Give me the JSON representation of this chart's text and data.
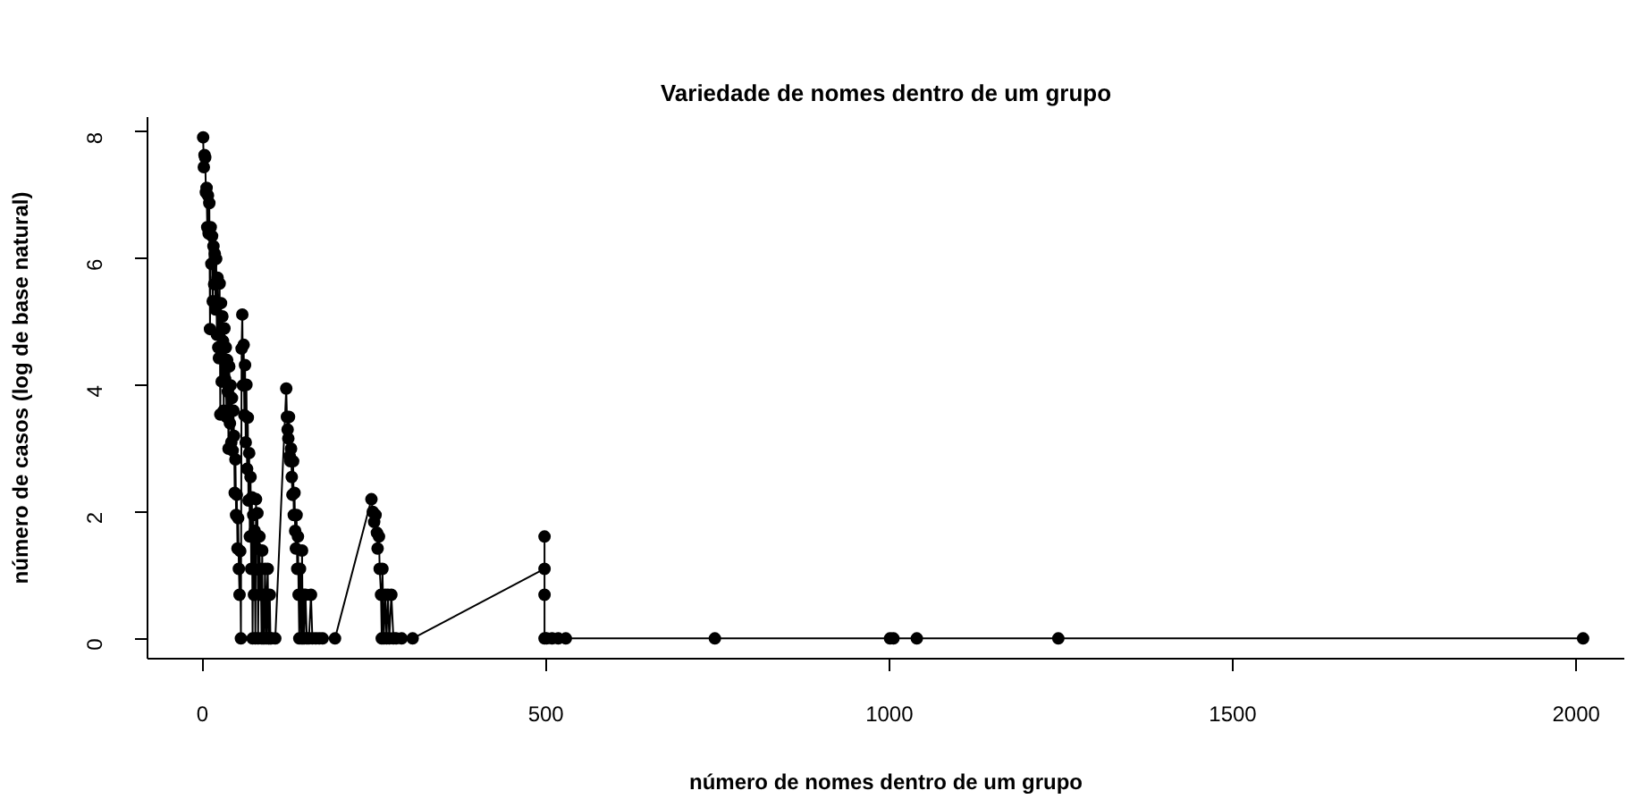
{
  "chart_data": {
    "type": "line",
    "title": "Variedade de nomes dentro de um grupo",
    "xlabel": "número de nomes dentro de um grupo",
    "ylabel": "número de casos (log de base natural)",
    "x": [
      1,
      2,
      3,
      4,
      5,
      6,
      7,
      8,
      9,
      10,
      11,
      12,
      13,
      14,
      15,
      16,
      17,
      18,
      19,
      20,
      21,
      22,
      23,
      24,
      25,
      26,
      27,
      28,
      29,
      30,
      31,
      32,
      33,
      34,
      35,
      36,
      37,
      38,
      39,
      40,
      41,
      42,
      43,
      44,
      45,
      46,
      47,
      48,
      49,
      50,
      51,
      52,
      53,
      54,
      55,
      56,
      57,
      58,
      59,
      60,
      61,
      62,
      63,
      64,
      65,
      66,
      67,
      68,
      69,
      70,
      71,
      72,
      73,
      74,
      75,
      76,
      77,
      78,
      79,
      80,
      81,
      82,
      83,
      84,
      85,
      86,
      87,
      88,
      89,
      90,
      91,
      92,
      93,
      94,
      95,
      96,
      97,
      98,
      99,
      100,
      106,
      122,
      123,
      124,
      125,
      126,
      127,
      128,
      129,
      130,
      131,
      132,
      133,
      134,
      135,
      136,
      137,
      138,
      139,
      140,
      141,
      142,
      143,
      144,
      145,
      146,
      147,
      148,
      150,
      152,
      155,
      158,
      160,
      165,
      170,
      175,
      193,
      246,
      248,
      250,
      252,
      254,
      255,
      257,
      258,
      260,
      261,
      262,
      264,
      266,
      268,
      270,
      272,
      275,
      278,
      282,
      290,
      306,
      498,
      498,
      498,
      498,
      501,
      509,
      518,
      529,
      746,
      1001,
      1006,
      1040,
      1246,
      2010
    ],
    "values": [
      7.92,
      7.45,
      7.64,
      7.6,
      7.05,
      7.12,
      6.5,
      7.0,
      6.4,
      6.88,
      4.89,
      6.5,
      5.92,
      6.36,
      5.33,
      6.2,
      5.6,
      6.08,
      5.2,
      6.0,
      4.8,
      5.7,
      4.6,
      4.43,
      5.61,
      3.54,
      5.3,
      4.06,
      5.09,
      4.7,
      3.6,
      4.9,
      4.1,
      4.6,
      3.5,
      4.4,
      3.9,
      3.0,
      4.3,
      3.4,
      4.0,
      3.1,
      3.8,
      2.97,
      3.6,
      3.2,
      2.3,
      2.83,
      1.95,
      2.27,
      1.42,
      1.9,
      1.1,
      0.69,
      1.38,
      0,
      4.58,
      5.12,
      4.0,
      4.64,
      3.53,
      4.32,
      3.1,
      4.01,
      2.68,
      3.49,
      2.18,
      2.93,
      1.61,
      2.55,
      1.1,
      2.23,
      0,
      1.95,
      0.69,
      1.7,
      0,
      2.2,
      1.42,
      1.98,
      0,
      1.09,
      1.61,
      0.69,
      1.1,
      0,
      1.39,
      0,
      0.69,
      0,
      1.1,
      0.69,
      0,
      0.69,
      1.1,
      0,
      0,
      0.69,
      0,
      0,
      0,
      3.95,
      3.5,
      3.3,
      3.16,
      3.5,
      2.88,
      2.8,
      3.0,
      2.55,
      2.27,
      2.8,
      1.95,
      2.3,
      1.7,
      1.42,
      1.95,
      1.1,
      1.61,
      0.69,
      0,
      1.1,
      0.69,
      0,
      1.39,
      0,
      0.69,
      0,
      0.69,
      0,
      0,
      0.69,
      0,
      0,
      0,
      0,
      0,
      2.2,
      2.0,
      1.84,
      1.95,
      1.67,
      1.42,
      1.61,
      1.1,
      0.69,
      0,
      1.1,
      0,
      0.69,
      0,
      0.69,
      0,
      0.69,
      0,
      0,
      0,
      0,
      1.1,
      1.61,
      0.69,
      0,
      0,
      0,
      0,
      0,
      0,
      0,
      0,
      0,
      0,
      0
    ],
    "color": "#000000",
    "marker": "circle",
    "line_style": "solid",
    "xlim": [
      -80,
      2070
    ],
    "ylim": [
      -0.32,
      8.24
    ],
    "xticks": [
      0,
      500,
      1000,
      1500,
      2000
    ],
    "yticks": [
      0,
      2,
      4,
      6,
      8
    ],
    "grid": false
  }
}
